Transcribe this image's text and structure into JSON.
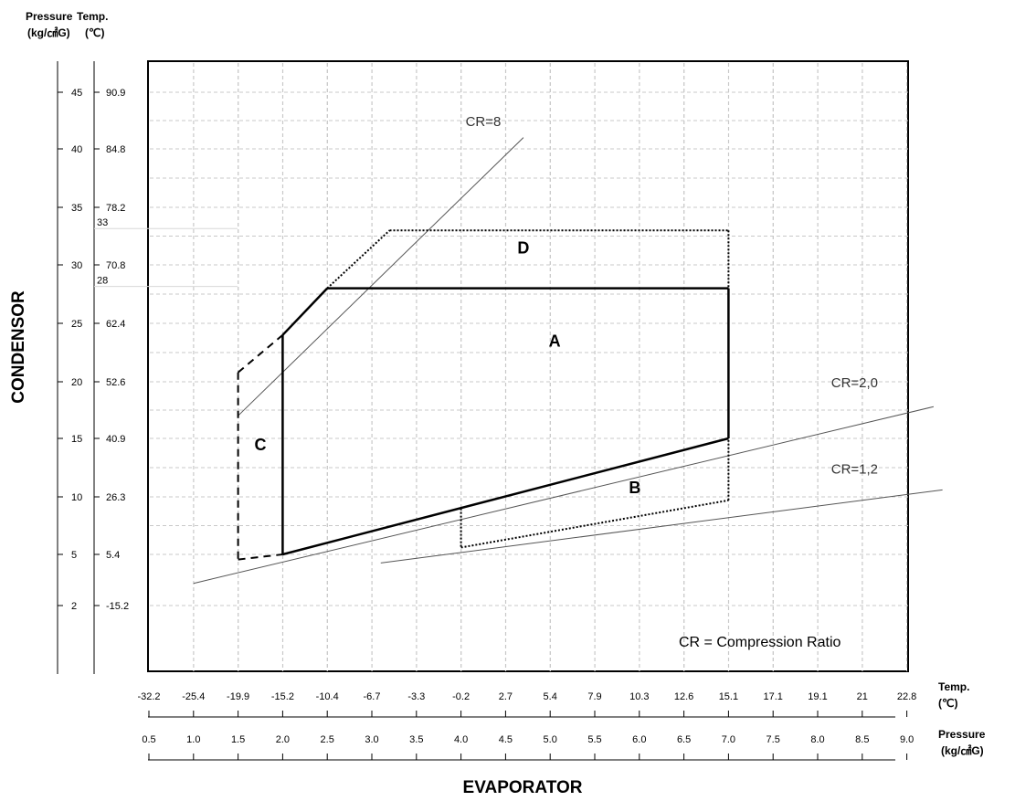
{
  "chart_data": {
    "type": "line",
    "title": "",
    "xlabel": "EVAPORATOR",
    "ylabel": "CONDENSOR",
    "grid": true,
    "x_axis": {
      "pressure_header": [
        "Pressure",
        "(kg/㎠G)"
      ],
      "temp_header": [
        "Temp.",
        "(℃)"
      ],
      "temp_ticks": [
        "-32.2",
        "-25.4",
        "-19.9",
        "-15.2",
        "-10.4",
        "-6.7",
        "-3.3",
        "-0.2",
        "2.7",
        "5.4",
        "7.9",
        "10.3",
        "12.6",
        "15.1",
        "17.1",
        "19.1",
        "21",
        "22.8"
      ],
      "pressure_ticks": [
        "0.5",
        "1.0",
        "1.5",
        "2.0",
        "2.5",
        "3.0",
        "3.5",
        "4.0",
        "4.5",
        "5.0",
        "5.5",
        "6.0",
        "6.5",
        "7.0",
        "7.5",
        "8.0",
        "8.5",
        "9.0"
      ],
      "range": [
        0.5,
        9.0
      ]
    },
    "y_axis": {
      "pressure_header": [
        "Pressure",
        "(kg/㎠G)"
      ],
      "temp_header": [
        "Temp.",
        "(℃)"
      ],
      "pressure_ticks": [
        "45",
        "40",
        "35",
        "30",
        "25",
        "20",
        "15",
        "10",
        "5",
        "2"
      ],
      "temp_ticks": [
        "90.9",
        "84.8",
        "78.2",
        "70.8",
        "62.4",
        "52.6",
        "40.9",
        "26.3",
        "5.4",
        "-15.2"
      ],
      "extra_ticks": [
        "33",
        "28"
      ]
    },
    "series": [
      {
        "name": "CR=8",
        "x": [
          1.5,
          4.7
        ],
        "y": [
          17,
          41
        ]
      },
      {
        "name": "CR=2,0",
        "x": [
          1.0,
          9.3
        ],
        "y": [
          3.3,
          17.8
        ]
      },
      {
        "name": "CR=1,2",
        "x": [
          3.1,
          9.4
        ],
        "y": [
          4.5,
          10.6
        ]
      }
    ],
    "regions": [
      {
        "label": "A",
        "x": [
          2.0,
          2.0,
          2.5,
          7.0,
          7.0,
          2.0
        ],
        "y": [
          5,
          24,
          28,
          28,
          15,
          5
        ]
      },
      {
        "label": "B",
        "x": [
          4.0,
          4.0,
          7.0,
          7.0
        ],
        "y": [
          9,
          5.6,
          9.7,
          15
        ]
      },
      {
        "label": "C",
        "x": [
          1.5,
          1.5,
          2.0
        ],
        "y": [
          20.8,
          4.7,
          5
        ]
      },
      {
        "label": "D",
        "x": [
          2.5,
          3.2,
          7.0,
          7.0
        ],
        "y": [
          28,
          33,
          33,
          28
        ]
      }
    ],
    "region_labels": [
      "A",
      "B",
      "C",
      "D"
    ],
    "annotation": "CR = Compression Ratio"
  }
}
